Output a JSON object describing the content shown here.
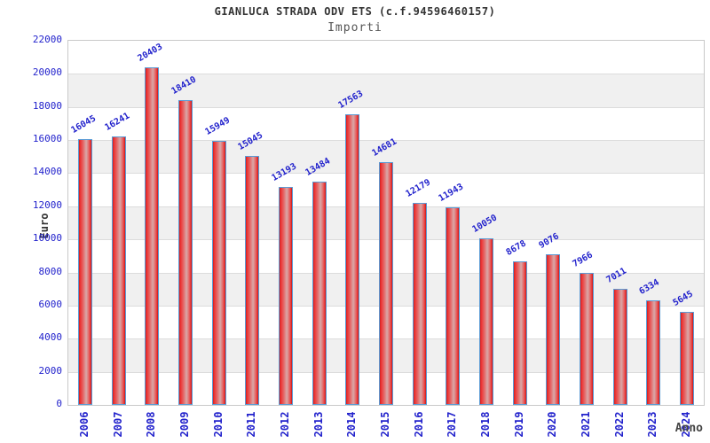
{
  "chart_data": {
    "type": "bar",
    "title": "GIANLUCA STRADA ODV ETS (c.f.94596460157)",
    "subtitle": "Importi",
    "xlabel": "Anno",
    "ylabel": "Euro",
    "categories": [
      "2006",
      "2007",
      "2008",
      "2009",
      "2010",
      "2011",
      "2012",
      "2013",
      "2014",
      "2015",
      "2016",
      "2017",
      "2018",
      "2019",
      "2020",
      "2021",
      "2022",
      "2023",
      "2024"
    ],
    "values": [
      16045,
      16241,
      20403,
      18410,
      15949,
      15045,
      13193,
      13484,
      17563,
      14681,
      12179,
      11943,
      10050,
      8678,
      9076,
      7966,
      7011,
      6334,
      5645
    ],
    "ylim": [
      0,
      22000
    ],
    "ytick_step": 2000,
    "grid": true,
    "legend": "none",
    "colors": {
      "bar_fill_red": "#e03030",
      "bar_center_highlight": "#d9a8a8",
      "bar_border_blue": "#5b9bd5",
      "label_blue": "#2222cc",
      "band_gray": "#f0f0f0",
      "gridline_gray": "#dcdcdc",
      "title_dark": "#333333",
      "subtitle_gray": "#555555"
    }
  }
}
